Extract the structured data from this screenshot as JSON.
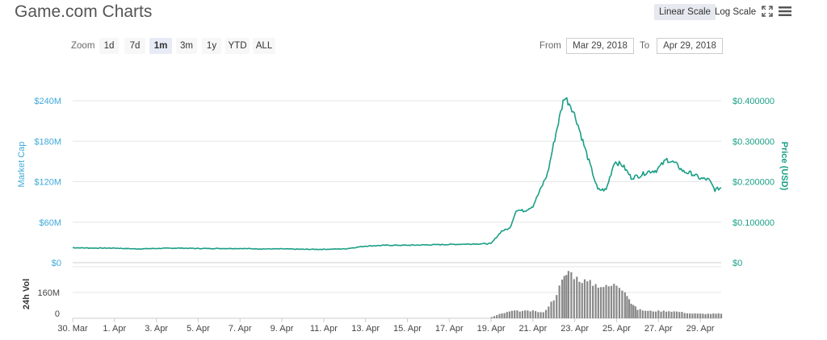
{
  "header": {
    "title": "Game.com Charts",
    "linear_scale": "Linear Scale",
    "log_scale": "Log Scale",
    "fullscreen_icon": "fullscreen-icon",
    "menu_icon": "menu-icon"
  },
  "zoom": {
    "label": "Zoom",
    "options": [
      "1d",
      "7d",
      "1m",
      "3m",
      "1y",
      "YTD",
      "ALL"
    ],
    "selected": "1m"
  },
  "range": {
    "from_label": "From",
    "from_value": "Mar 29, 2018",
    "to_label": "To",
    "to_value": "Apr 29, 2018"
  },
  "colors": {
    "price_line": "#1a9e86",
    "market_cap_axis": "#3da9d9",
    "price_axis": "#19a087",
    "volume": "#888888",
    "grid": "#e6e6e6"
  },
  "chart_data": {
    "type": "line",
    "title": "",
    "left_axis_label": "Market Cap",
    "right_axis_label": "Price (USD)",
    "volume_axis_label": "24h Vol",
    "left_ticks": [
      "$0",
      "$60M",
      "$120M",
      "$180M",
      "$240M"
    ],
    "left_tick_values": [
      0,
      60,
      120,
      180,
      240
    ],
    "right_ticks": [
      "$0",
      "$0.100000",
      "$0.200000",
      "$0.300000",
      "$0.400000"
    ],
    "right_tick_values": [
      0,
      0.1,
      0.2,
      0.3,
      0.4
    ],
    "volume_ticks": [
      "0",
      "160M"
    ],
    "volume_tick_values": [
      0,
      160
    ],
    "x_ticks": [
      "30. Mar",
      "1. Apr",
      "3. Apr",
      "5. Apr",
      "7. Apr",
      "9. Apr",
      "11. Apr",
      "13. Apr",
      "15. Apr",
      "17. Apr",
      "19. Apr",
      "21. Apr",
      "23. Apr",
      "25. Apr",
      "27. Apr",
      "29. Apr"
    ],
    "x_tick_days": [
      0,
      2,
      4,
      6,
      8,
      10,
      12,
      14,
      16,
      18,
      20,
      22,
      24,
      26,
      28,
      30
    ],
    "x_range_days": [
      0,
      31
    ],
    "ylim_market_cap": [
      0,
      240
    ],
    "ylim_price": [
      0,
      0.4
    ],
    "ylim_volume": [
      0,
      320
    ],
    "grid": true,
    "series": [
      {
        "name": "Price (USD)",
        "axis": "right",
        "points": [
          [
            0.0,
            0.037
          ],
          [
            1.0,
            0.036
          ],
          [
            2.0,
            0.036
          ],
          [
            3.0,
            0.034
          ],
          [
            4.0,
            0.035
          ],
          [
            5.0,
            0.036
          ],
          [
            6.0,
            0.035
          ],
          [
            7.0,
            0.035
          ],
          [
            8.0,
            0.035
          ],
          [
            9.0,
            0.034
          ],
          [
            10.0,
            0.034
          ],
          [
            11.0,
            0.033
          ],
          [
            12.0,
            0.033
          ],
          [
            13.0,
            0.034
          ],
          [
            14.0,
            0.041
          ],
          [
            15.0,
            0.043
          ],
          [
            16.0,
            0.043
          ],
          [
            17.0,
            0.044
          ],
          [
            18.0,
            0.045
          ],
          [
            19.0,
            0.046
          ],
          [
            20.0,
            0.047
          ],
          [
            20.5,
            0.078
          ],
          [
            20.9,
            0.085
          ],
          [
            21.2,
            0.13
          ],
          [
            21.6,
            0.128
          ],
          [
            22.0,
            0.14
          ],
          [
            22.4,
            0.185
          ],
          [
            22.7,
            0.22
          ],
          [
            23.1,
            0.32
          ],
          [
            23.5,
            0.41
          ],
          [
            23.8,
            0.39
          ],
          [
            24.1,
            0.35
          ],
          [
            24.5,
            0.28
          ],
          [
            24.8,
            0.23
          ],
          [
            25.1,
            0.18
          ],
          [
            25.5,
            0.18
          ],
          [
            25.9,
            0.25
          ],
          [
            26.3,
            0.24
          ],
          [
            26.7,
            0.21
          ],
          [
            27.1,
            0.215
          ],
          [
            27.5,
            0.225
          ],
          [
            27.9,
            0.228
          ],
          [
            28.4,
            0.255
          ],
          [
            28.8,
            0.245
          ],
          [
            29.2,
            0.225
          ],
          [
            29.6,
            0.22
          ],
          [
            30.0,
            0.208
          ],
          [
            30.4,
            0.205
          ],
          [
            30.7,
            0.18
          ],
          [
            31.0,
            0.185
          ]
        ]
      },
      {
        "name": "24h Vol",
        "axis": "volume",
        "points": [
          [
            0.0,
            1
          ],
          [
            19.9,
            1
          ],
          [
            20.4,
            25
          ],
          [
            21.0,
            45
          ],
          [
            22.0,
            45
          ],
          [
            22.5,
            35
          ],
          [
            23.0,
            120
          ],
          [
            23.4,
            230
          ],
          [
            23.7,
            295
          ],
          [
            24.1,
            250
          ],
          [
            24.6,
            225
          ],
          [
            25.0,
            210
          ],
          [
            25.5,
            195
          ],
          [
            26.0,
            210
          ],
          [
            26.4,
            175
          ],
          [
            26.7,
            95
          ],
          [
            27.0,
            55
          ],
          [
            27.5,
            45
          ],
          [
            28.0,
            45
          ],
          [
            28.5,
            45
          ],
          [
            29.0,
            40
          ],
          [
            29.5,
            30
          ],
          [
            30.0,
            28
          ],
          [
            31.0,
            28
          ]
        ]
      }
    ]
  }
}
